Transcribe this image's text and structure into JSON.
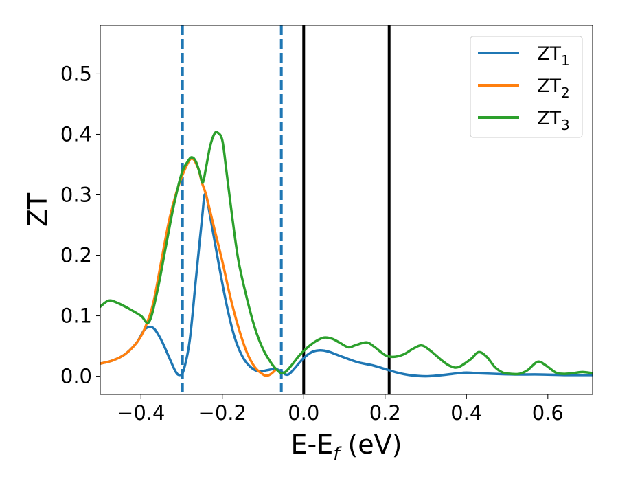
{
  "chart_data": {
    "type": "line",
    "xlabel": "E-E",
    "xlabel_sub": "f",
    "xlabel_unit": " (eV)",
    "ylabel": "ZT",
    "xlim": [
      -0.5,
      0.71
    ],
    "ylim": [
      -0.03,
      0.58
    ],
    "xticks": [
      -0.4,
      -0.2,
      0.0,
      0.2,
      0.4,
      0.6
    ],
    "xtick_labels": [
      "−0.4",
      "−0.2",
      "0.0",
      "0.2",
      "0.4",
      "0.6"
    ],
    "yticks": [
      0.0,
      0.1,
      0.2,
      0.3,
      0.4,
      0.5
    ],
    "ytick_labels": [
      "0.0",
      "0.1",
      "0.2",
      "0.3",
      "0.4",
      "0.5"
    ],
    "grid": false,
    "legend_position": "top-right",
    "vlines": [
      {
        "x": -0.298,
        "style": "dashed",
        "color": "#1f77b4"
      },
      {
        "x": -0.055,
        "style": "dashed",
        "color": "#1f77b4"
      },
      {
        "x": 0.0,
        "style": "solid",
        "color": "#000000"
      },
      {
        "x": 0.21,
        "style": "solid",
        "color": "#000000"
      }
    ],
    "series": [
      {
        "name": "ZT",
        "sub": "1",
        "color": "#1f77b4",
        "points": [
          [
            -0.5,
            0.021
          ],
          [
            -0.47,
            0.026
          ],
          [
            -0.44,
            0.036
          ],
          [
            -0.41,
            0.056
          ],
          [
            -0.39,
            0.078
          ],
          [
            -0.37,
            0.08
          ],
          [
            -0.35,
            0.06
          ],
          [
            -0.33,
            0.03
          ],
          [
            -0.315,
            0.008
          ],
          [
            -0.305,
            0.002
          ],
          [
            -0.295,
            0.01
          ],
          [
            -0.28,
            0.06
          ],
          [
            -0.265,
            0.16
          ],
          [
            -0.25,
            0.26
          ],
          [
            -0.242,
            0.302
          ],
          [
            -0.23,
            0.265
          ],
          [
            -0.21,
            0.19
          ],
          [
            -0.19,
            0.12
          ],
          [
            -0.17,
            0.065
          ],
          [
            -0.15,
            0.032
          ],
          [
            -0.13,
            0.015
          ],
          [
            -0.11,
            0.008
          ],
          [
            -0.09,
            0.01
          ],
          [
            -0.07,
            0.012
          ],
          [
            -0.055,
            0.008
          ],
          [
            -0.045,
            0.003
          ],
          [
            -0.035,
            0.004
          ],
          [
            -0.02,
            0.015
          ],
          [
            0.0,
            0.03
          ],
          [
            0.02,
            0.04
          ],
          [
            0.04,
            0.043
          ],
          [
            0.06,
            0.041
          ],
          [
            0.08,
            0.036
          ],
          [
            0.1,
            0.031
          ],
          [
            0.12,
            0.026
          ],
          [
            0.14,
            0.022
          ],
          [
            0.17,
            0.018
          ],
          [
            0.2,
            0.012
          ],
          [
            0.23,
            0.006
          ],
          [
            0.26,
            0.002
          ],
          [
            0.3,
            0.0
          ],
          [
            0.34,
            0.002
          ],
          [
            0.38,
            0.005
          ],
          [
            0.4,
            0.006
          ],
          [
            0.43,
            0.005
          ],
          [
            0.47,
            0.004
          ],
          [
            0.52,
            0.003
          ],
          [
            0.58,
            0.003
          ],
          [
            0.64,
            0.002
          ],
          [
            0.71,
            0.002
          ]
        ]
      },
      {
        "name": "ZT",
        "sub": "2",
        "color": "#ff7f0e",
        "points": [
          [
            -0.5,
            0.021
          ],
          [
            -0.47,
            0.026
          ],
          [
            -0.44,
            0.036
          ],
          [
            -0.41,
            0.056
          ],
          [
            -0.39,
            0.08
          ],
          [
            -0.37,
            0.12
          ],
          [
            -0.35,
            0.19
          ],
          [
            -0.33,
            0.26
          ],
          [
            -0.31,
            0.31
          ],
          [
            -0.29,
            0.345
          ],
          [
            -0.275,
            0.36
          ],
          [
            -0.26,
            0.345
          ],
          [
            -0.25,
            0.32
          ],
          [
            -0.24,
            0.3
          ],
          [
            -0.22,
            0.245
          ],
          [
            -0.2,
            0.19
          ],
          [
            -0.18,
            0.13
          ],
          [
            -0.16,
            0.08
          ],
          [
            -0.14,
            0.04
          ],
          [
            -0.12,
            0.015
          ],
          [
            -0.1,
            0.003
          ],
          [
            -0.09,
            0.001
          ],
          [
            -0.08,
            0.004
          ],
          [
            -0.07,
            0.01
          ]
        ]
      },
      {
        "name": "ZT",
        "sub": "3",
        "color": "#2ca02c",
        "points": [
          [
            -0.5,
            0.115
          ],
          [
            -0.48,
            0.125
          ],
          [
            -0.46,
            0.122
          ],
          [
            -0.43,
            0.112
          ],
          [
            -0.4,
            0.1
          ],
          [
            -0.38,
            0.09
          ],
          [
            -0.36,
            0.14
          ],
          [
            -0.34,
            0.21
          ],
          [
            -0.32,
            0.28
          ],
          [
            -0.3,
            0.335
          ],
          [
            -0.285,
            0.355
          ],
          [
            -0.275,
            0.362
          ],
          [
            -0.265,
            0.355
          ],
          [
            -0.255,
            0.335
          ],
          [
            -0.248,
            0.32
          ],
          [
            -0.24,
            0.345
          ],
          [
            -0.23,
            0.38
          ],
          [
            -0.22,
            0.4
          ],
          [
            -0.212,
            0.403
          ],
          [
            -0.2,
            0.39
          ],
          [
            -0.19,
            0.34
          ],
          [
            -0.175,
            0.26
          ],
          [
            -0.16,
            0.19
          ],
          [
            -0.14,
            0.13
          ],
          [
            -0.12,
            0.08
          ],
          [
            -0.1,
            0.045
          ],
          [
            -0.08,
            0.022
          ],
          [
            -0.065,
            0.01
          ],
          [
            -0.055,
            0.005
          ],
          [
            -0.045,
            0.007
          ],
          [
            -0.03,
            0.018
          ],
          [
            -0.01,
            0.035
          ],
          [
            0.01,
            0.048
          ],
          [
            0.03,
            0.058
          ],
          [
            0.05,
            0.064
          ],
          [
            0.07,
            0.062
          ],
          [
            0.09,
            0.055
          ],
          [
            0.11,
            0.048
          ],
          [
            0.13,
            0.052
          ],
          [
            0.155,
            0.056
          ],
          [
            0.175,
            0.048
          ],
          [
            0.2,
            0.035
          ],
          [
            0.22,
            0.032
          ],
          [
            0.245,
            0.036
          ],
          [
            0.27,
            0.046
          ],
          [
            0.29,
            0.051
          ],
          [
            0.31,
            0.043
          ],
          [
            0.34,
            0.026
          ],
          [
            0.36,
            0.017
          ],
          [
            0.38,
            0.015
          ],
          [
            0.41,
            0.028
          ],
          [
            0.43,
            0.04
          ],
          [
            0.45,
            0.032
          ],
          [
            0.47,
            0.015
          ],
          [
            0.49,
            0.006
          ],
          [
            0.51,
            0.004
          ],
          [
            0.53,
            0.004
          ],
          [
            0.55,
            0.01
          ],
          [
            0.575,
            0.024
          ],
          [
            0.595,
            0.018
          ],
          [
            0.62,
            0.006
          ],
          [
            0.64,
            0.004
          ],
          [
            0.66,
            0.005
          ],
          [
            0.685,
            0.007
          ],
          [
            0.71,
            0.005
          ]
        ]
      }
    ]
  }
}
